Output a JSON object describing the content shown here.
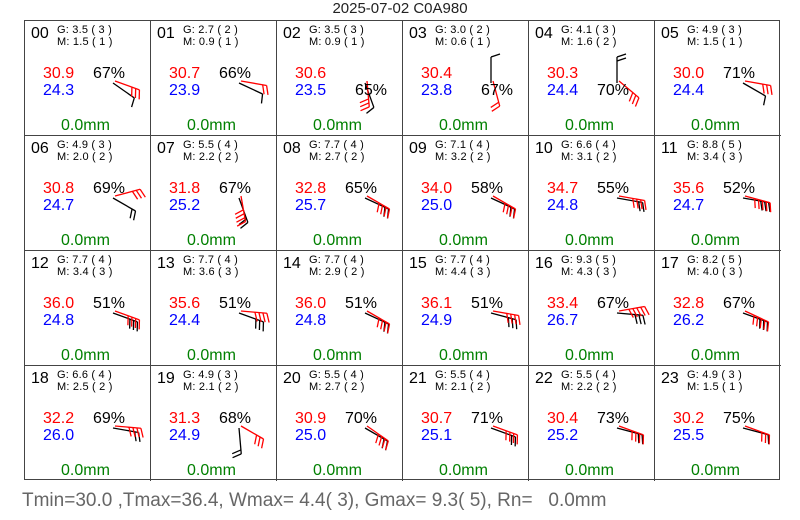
{
  "title": "2025-07-02 C0A980",
  "footer": "Tmin=30.0 ,Tmax=36.4, Wmax= 4.4( 3), Gmax= 9.3( 5), Rn=   0.0mm",
  "colors": {
    "temperature": "#ff0000",
    "dewpoint": "#0000ff",
    "rain": "#008000",
    "gust_barb": "#ff0000",
    "mean_barb": "#000000"
  },
  "chart_data": {
    "type": "table",
    "title": "2025-07-02 C0A980",
    "hours": [
      {
        "hour": "00",
        "gust": "3.5",
        "gust_bf": "3",
        "mean": "1.5",
        "mean_bf": "1",
        "temp": "30.9",
        "dew": "24.3",
        "rh": "67%",
        "rain": "0.0mm",
        "g_dir": 110,
        "m_dir": 125
      },
      {
        "hour": "01",
        "gust": "2.7",
        "gust_bf": "2",
        "mean": "0.9",
        "mean_bf": "1",
        "temp": "30.7",
        "dew": "23.9",
        "rh": "66%",
        "rain": "0.0mm",
        "g_dir": 100,
        "m_dir": 115
      },
      {
        "hour": "02",
        "gust": "3.5",
        "gust_bf": "3",
        "mean": "0.9",
        "mean_bf": "1",
        "temp": "30.6",
        "dew": "23.5",
        "rh": "65%",
        "rain": "0.0mm",
        "g_dir": 175,
        "m_dir": 160
      },
      {
        "hour": "03",
        "gust": "3.0",
        "gust_bf": "2",
        "mean": "0.6",
        "mean_bf": "1",
        "temp": "30.4",
        "dew": "23.8",
        "rh": "67%",
        "rain": "0.0mm",
        "g_dir": 165,
        "m_dir": 0
      },
      {
        "hour": "04",
        "gust": "4.1",
        "gust_bf": "3",
        "mean": "1.6",
        "mean_bf": "2",
        "temp": "30.3",
        "dew": "24.4",
        "rh": "70%",
        "rain": "0.0mm",
        "g_dir": 130,
        "m_dir": 0
      },
      {
        "hour": "05",
        "gust": "4.9",
        "gust_bf": "3",
        "mean": "1.5",
        "mean_bf": "1",
        "temp": "30.0",
        "dew": "24.4",
        "rh": "71%",
        "rain": "0.0mm",
        "g_dir": 100,
        "m_dir": 120
      },
      {
        "hour": "06",
        "gust": "4.9",
        "gust_bf": "3",
        "mean": "2.0",
        "mean_bf": "2",
        "temp": "30.8",
        "dew": "24.7",
        "rh": "69%",
        "rain": "0.0mm",
        "g_dir": 75,
        "m_dir": 120
      },
      {
        "hour": "07",
        "gust": "5.5",
        "gust_bf": "4",
        "mean": "2.2",
        "mean_bf": "2",
        "temp": "31.8",
        "dew": "25.2",
        "rh": "67%",
        "rain": "0.0mm",
        "g_dir": 170,
        "m_dir": 160
      },
      {
        "hour": "08",
        "gust": "7.7",
        "gust_bf": "4",
        "mean": "2.7",
        "mean_bf": "2",
        "temp": "32.8",
        "dew": "25.7",
        "rh": "65%",
        "rain": "0.0mm",
        "g_dir": 120,
        "m_dir": 115
      },
      {
        "hour": "09",
        "gust": "7.1",
        "gust_bf": "4",
        "mean": "3.2",
        "mean_bf": "2",
        "temp": "34.0",
        "dew": "25.0",
        "rh": "58%",
        "rain": "0.0mm",
        "g_dir": 120,
        "m_dir": 115
      },
      {
        "hour": "10",
        "gust": "6.6",
        "gust_bf": "4",
        "mean": "3.1",
        "mean_bf": "2",
        "temp": "34.7",
        "dew": "24.8",
        "rh": "55%",
        "rain": "0.0mm",
        "g_dir": 100,
        "m_dir": 100
      },
      {
        "hour": "11",
        "gust": "8.8",
        "gust_bf": "5",
        "mean": "3.4",
        "mean_bf": "3",
        "temp": "35.6",
        "dew": "24.7",
        "rh": "52%",
        "rain": "0.0mm",
        "g_dir": 105,
        "m_dir": 100
      },
      {
        "hour": "12",
        "gust": "7.7",
        "gust_bf": "4",
        "mean": "3.4",
        "mean_bf": "3",
        "temp": "36.0",
        "dew": "24.8",
        "rh": "51%",
        "rain": "0.0mm",
        "g_dir": 110,
        "m_dir": 110
      },
      {
        "hour": "13",
        "gust": "7.7",
        "gust_bf": "4",
        "mean": "3.6",
        "mean_bf": "3",
        "temp": "35.6",
        "dew": "24.4",
        "rh": "51%",
        "rain": "0.0mm",
        "g_dir": 95,
        "m_dir": 110
      },
      {
        "hour": "14",
        "gust": "7.7",
        "gust_bf": "4",
        "mean": "2.9",
        "mean_bf": "2",
        "temp": "36.0",
        "dew": "24.8",
        "rh": "51%",
        "rain": "0.0mm",
        "g_dir": 120,
        "m_dir": 115
      },
      {
        "hour": "15",
        "gust": "7.7",
        "gust_bf": "4",
        "mean": "4.4",
        "mean_bf": "3",
        "temp": "36.1",
        "dew": "24.9",
        "rh": "51%",
        "rain": "0.0mm",
        "g_dir": 100,
        "m_dir": 105
      },
      {
        "hour": "16",
        "gust": "9.3",
        "gust_bf": "5",
        "mean": "4.3",
        "mean_bf": "3",
        "temp": "33.4",
        "dew": "26.7",
        "rh": "67%",
        "rain": "0.0mm",
        "g_dir": 80,
        "m_dir": 95
      },
      {
        "hour": "17",
        "gust": "8.2",
        "gust_bf": "5",
        "mean": "4.0",
        "mean_bf": "3",
        "temp": "32.8",
        "dew": "26.2",
        "rh": "67%",
        "rain": "0.0mm",
        "g_dir": 115,
        "m_dir": 110
      },
      {
        "hour": "18",
        "gust": "6.6",
        "gust_bf": "4",
        "mean": "2.5",
        "mean_bf": "2",
        "temp": "32.2",
        "dew": "26.0",
        "rh": "69%",
        "rain": "0.0mm",
        "g_dir": 95,
        "m_dir": 100
      },
      {
        "hour": "19",
        "gust": "4.9",
        "gust_bf": "3",
        "mean": "2.1",
        "mean_bf": "2",
        "temp": "31.3",
        "dew": "24.9",
        "rh": "68%",
        "rain": "0.0mm",
        "g_dir": 120,
        "m_dir": 175
      },
      {
        "hour": "20",
        "gust": "5.5",
        "gust_bf": "4",
        "mean": "2.7",
        "mean_bf": "2",
        "temp": "30.9",
        "dew": "25.0",
        "rh": "70%",
        "rain": "0.0mm",
        "g_dir": 125,
        "m_dir": 120
      },
      {
        "hour": "21",
        "gust": "5.5",
        "gust_bf": "4",
        "mean": "2.1",
        "mean_bf": "2",
        "temp": "30.7",
        "dew": "25.1",
        "rh": "71%",
        "rain": "0.0mm",
        "g_dir": 110,
        "m_dir": 110
      },
      {
        "hour": "22",
        "gust": "5.5",
        "gust_bf": "4",
        "mean": "2.2",
        "mean_bf": "2",
        "temp": "30.4",
        "dew": "25.2",
        "rh": "73%",
        "rain": "0.0mm",
        "g_dir": 110,
        "m_dir": 105
      },
      {
        "hour": "23",
        "gust": "4.9",
        "gust_bf": "3",
        "mean": "1.5",
        "mean_bf": "1",
        "temp": "30.2",
        "dew": "25.5",
        "rh": "75%",
        "rain": "0.0mm",
        "g_dir": 110,
        "m_dir": 105
      }
    ]
  }
}
